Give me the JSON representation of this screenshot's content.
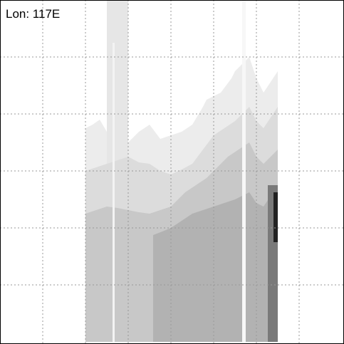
{
  "label": "Lon: 117E"
}
